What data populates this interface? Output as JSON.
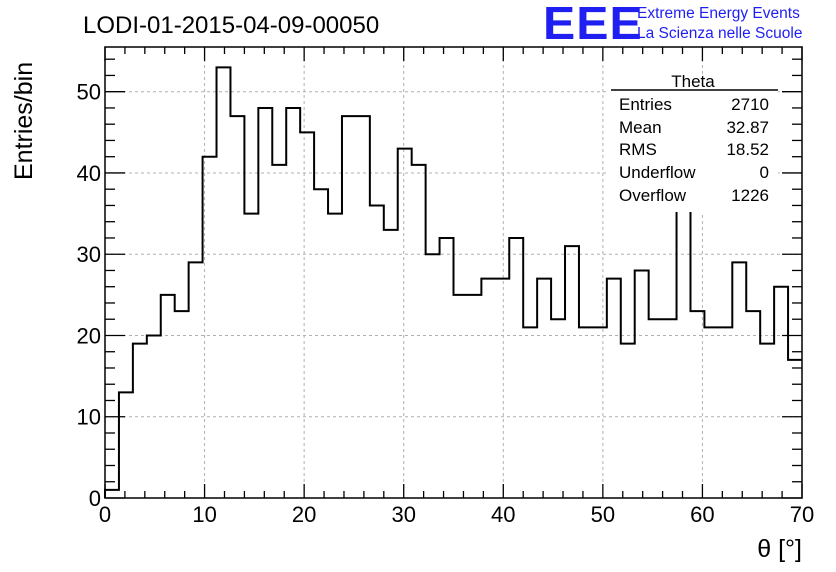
{
  "header": {
    "run_title": "LODI-01-2015-04-09-00050",
    "logo": {
      "mark": "EEE",
      "line1": "Extreme Energy Events",
      "line2": "La Scienza nelle Scuole",
      "color": "#1f1ff2"
    }
  },
  "chart_data": {
    "type": "bar",
    "xlabel": "θ [°]",
    "ylabel": "Entries/bin",
    "xlim": [
      0,
      70
    ],
    "ylim": [
      0,
      55.5
    ],
    "grid": true,
    "x_ticks": [
      0,
      10,
      20,
      30,
      40,
      50,
      60,
      70
    ],
    "y_ticks": [
      0,
      10,
      20,
      30,
      40,
      50
    ],
    "bin_width": 1.4,
    "bin_edges_start": 0,
    "values": [
      1,
      13,
      19,
      20,
      25,
      23,
      29,
      42,
      53,
      47,
      35,
      48,
      41,
      48,
      45,
      38,
      35,
      47,
      47,
      36,
      33,
      43,
      41,
      30,
      32,
      25,
      25,
      27,
      27,
      32,
      21,
      27,
      22,
      31,
      21,
      21,
      27,
      19,
      28,
      22,
      22,
      37,
      23,
      21,
      21,
      29,
      23,
      19,
      26,
      17
    ],
    "stats_box": {
      "title": "Theta",
      "rows": [
        {
          "label": "Entries",
          "value": "2710"
        },
        {
          "label": "Mean",
          "value": "32.87"
        },
        {
          "label": "RMS",
          "value": "18.52"
        },
        {
          "label": "Underflow",
          "value": "0"
        },
        {
          "label": "Overflow",
          "value": "1226"
        }
      ]
    }
  }
}
